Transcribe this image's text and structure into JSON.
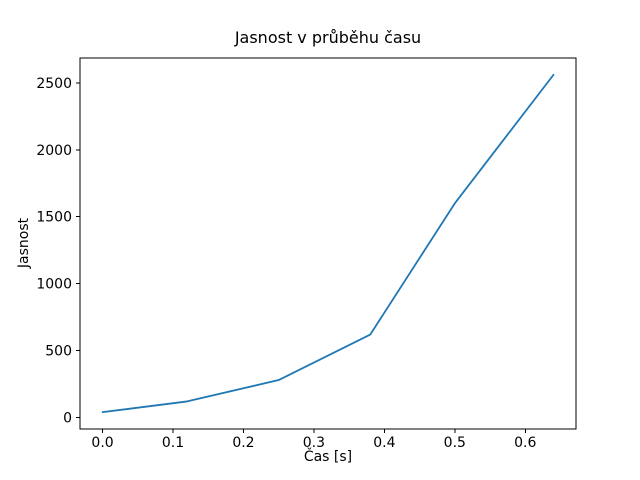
{
  "figure": {
    "background": "#ffffff"
  },
  "chart_data": {
    "type": "line",
    "title": "Jasnost v průběhu času",
    "xlabel": "Čas [s]",
    "ylabel": "Jasnost",
    "x": [
      0.0,
      0.12,
      0.25,
      0.38,
      0.5,
      0.64
    ],
    "y": [
      40,
      120,
      280,
      620,
      1600,
      2560
    ],
    "xlim": [
      -0.032,
      0.672
    ],
    "ylim": [
      -86,
      2686
    ],
    "xticks": [
      0.0,
      0.1,
      0.2,
      0.3,
      0.4,
      0.5,
      0.6
    ],
    "xtick_labels": [
      "0.0",
      "0.1",
      "0.2",
      "0.3",
      "0.4",
      "0.5",
      "0.6"
    ],
    "yticks": [
      0,
      500,
      1000,
      1500,
      2000,
      2500
    ],
    "ytick_labels": [
      "0",
      "500",
      "1000",
      "1500",
      "2000",
      "2500"
    ],
    "line_color": "#1f77b4",
    "axis_color": "#000000",
    "grid": false,
    "legend": null
  }
}
